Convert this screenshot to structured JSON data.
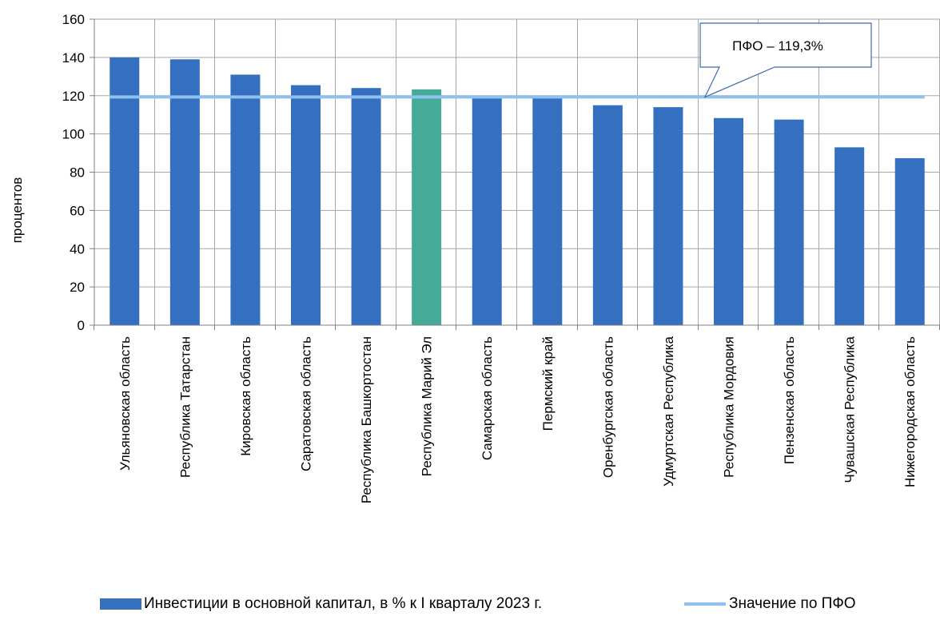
{
  "chart_data": {
    "type": "bar",
    "ylabel": "процентов",
    "xlabel": "",
    "ylim": [
      0,
      160
    ],
    "yticks": [
      0,
      20,
      40,
      60,
      80,
      100,
      120,
      140,
      160
    ],
    "grid": true,
    "categories": [
      "Ульяновская область",
      "Республика Татарстан",
      "Кировская область",
      "Саратовская область",
      "Республика Башкортостан",
      "Республика Марий Эл",
      "Самарская область",
      "Пермский край",
      "Оренбургская область",
      "Удмуртская Республика",
      "Республика Мордовия",
      "Пензенская область",
      "Чувашская Республика",
      "Нижегородская область"
    ],
    "series": [
      {
        "name": "Инвестиции в основной капитал, в % к I кварталу 2023 г.",
        "type": "bar",
        "values": [
          140.0,
          139.0,
          131.0,
          125.5,
          124.0,
          123.3,
          119.5,
          119.0,
          115.0,
          114.0,
          108.3,
          107.5,
          93.0,
          87.3
        ],
        "color": "#3570c0",
        "highlight_index": 5,
        "highlight_color": "#45aa98"
      },
      {
        "name": "Значение по ПФО",
        "type": "line",
        "value": 119.3,
        "color": "#8ec0f0"
      }
    ],
    "annotation": {
      "text": "ПФО – 119,3%"
    },
    "legend_position": "bottom"
  }
}
